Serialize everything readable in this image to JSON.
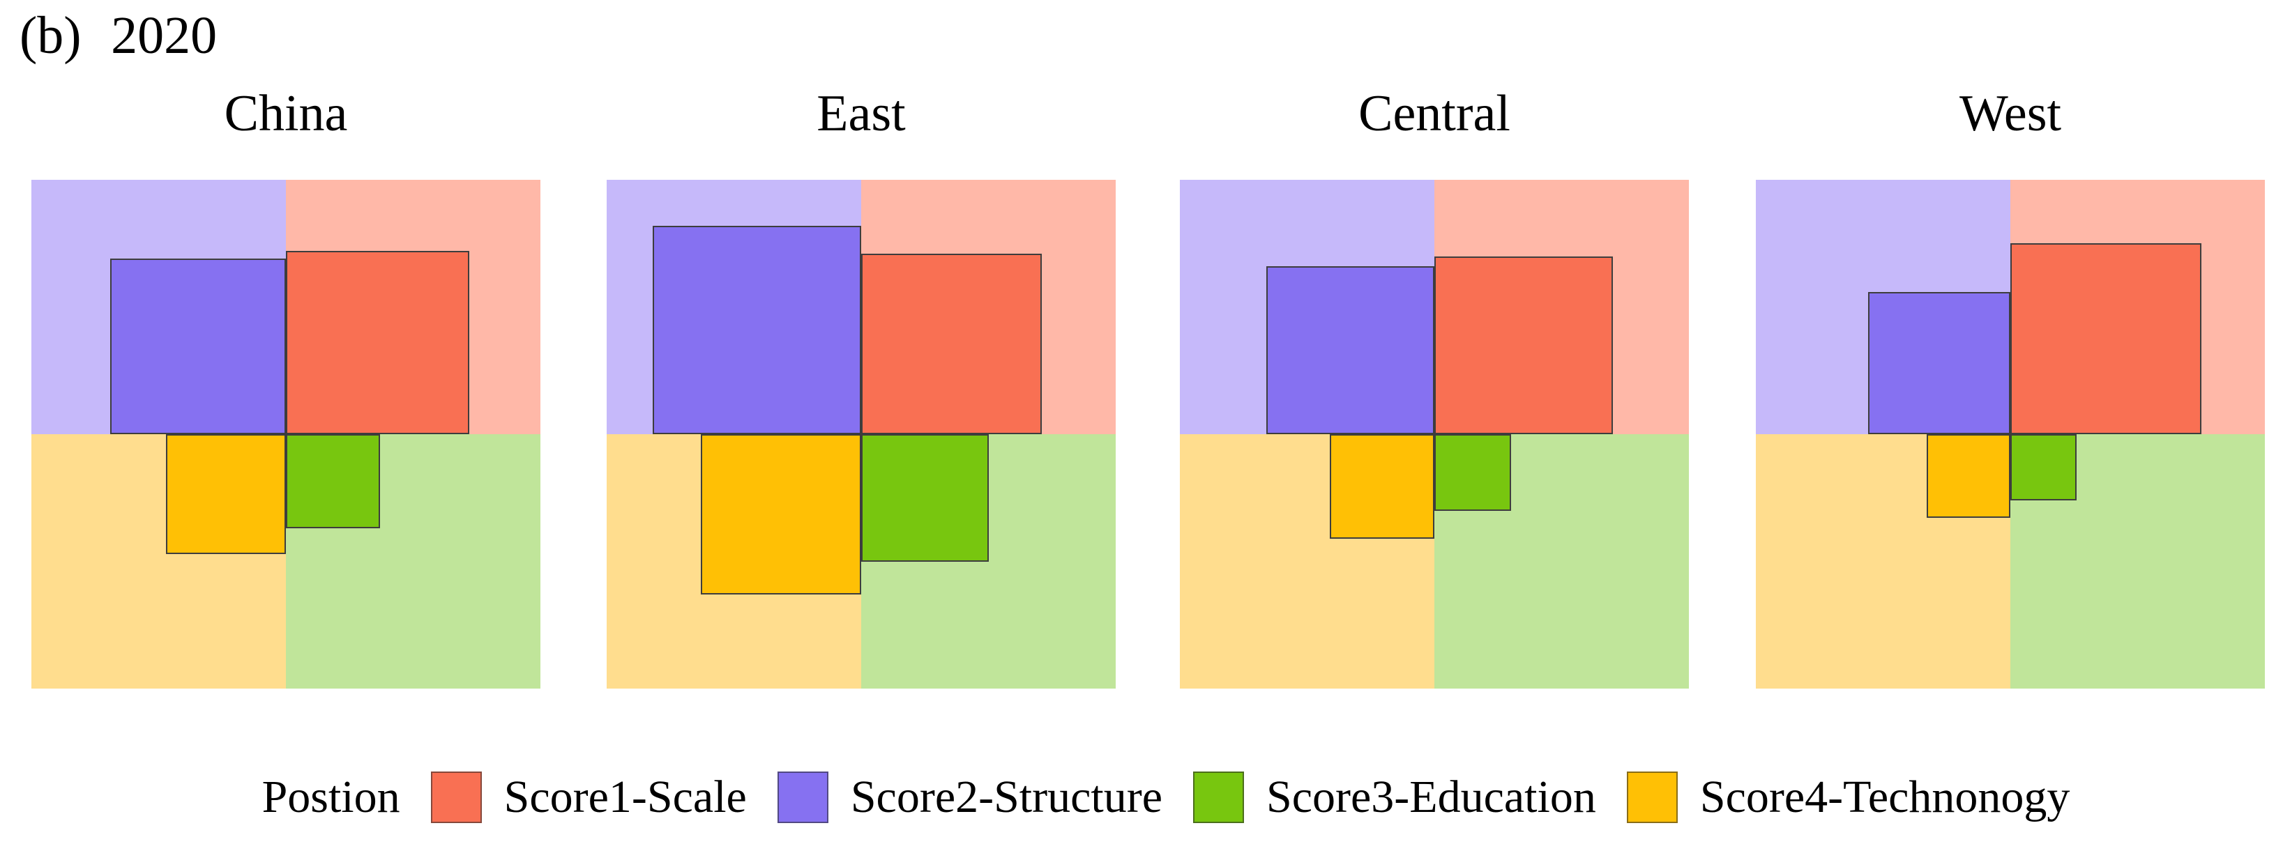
{
  "figure": {
    "label": "(b)",
    "year": "2020"
  },
  "colors": {
    "background": "#ffffff",
    "quadrant_top_left": "#c6b9fa",
    "quadrant_top_right": "#ffb8a8",
    "quadrant_bottom_left": "#ffdd8e",
    "quadrant_bottom_right": "#c0e59a",
    "score1_scale": "#f97053",
    "score2_structure": "#8671f1",
    "score3_education": "#78c60f",
    "score4_technonogy": "#ffc005",
    "square_border": "#3d3d3d"
  },
  "legend": {
    "title": "Postion",
    "items": [
      {
        "label": "Score1-Scale",
        "color": "#f97053"
      },
      {
        "label": "Score2-Structure",
        "color": "#8671f1"
      },
      {
        "label": "Score3-Education",
        "color": "#78c60f"
      },
      {
        "label": "Score4-Technonogy",
        "color": "#ffc005"
      }
    ]
  },
  "chart_data": {
    "type": "bar",
    "variant": "quadrant-square-glyphs: each panel is a square split into 4 pastel quadrants; one solid square per quadrant is anchored at the panel center and its side length encodes the value",
    "title": "(b) 2020",
    "categories": [
      "China",
      "East",
      "Central",
      "West"
    ],
    "series": [
      {
        "name": "Score1-Scale",
        "quadrant": "top-right",
        "values": [
          0.72,
          0.71,
          0.7,
          0.75
        ]
      },
      {
        "name": "Score2-Structure",
        "quadrant": "top-left",
        "values": [
          0.69,
          0.82,
          0.66,
          0.56
        ]
      },
      {
        "name": "Score3-Education",
        "quadrant": "bottom-right",
        "values": [
          0.37,
          0.5,
          0.3,
          0.26
        ]
      },
      {
        "name": "Score4-Technonogy",
        "quadrant": "bottom-left",
        "values": [
          0.47,
          0.63,
          0.41,
          0.33
        ]
      }
    ],
    "value_scale": "side length as fraction of quadrant (half-panel) side, 0-1, estimated from pixels",
    "legend_position": "bottom-center",
    "grid": false,
    "axes": false
  }
}
